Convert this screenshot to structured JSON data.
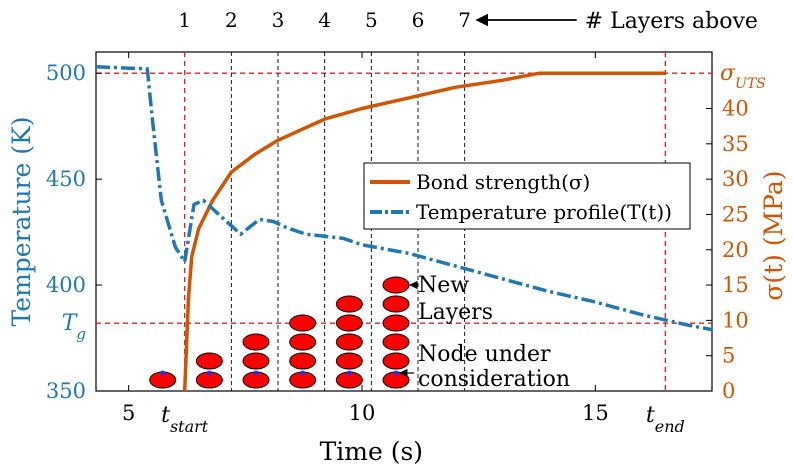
{
  "chart_data": {
    "type": "line",
    "title": "",
    "xlabel": "Time (s)",
    "ylabel_left": "Temperature (K)",
    "ylabel_right": "σ(t)  (MPa)",
    "xlim": [
      4.3,
      17.5
    ],
    "ylim_left": [
      350,
      510
    ],
    "ylim_right": [
      0,
      48
    ],
    "x_ticks": [
      5,
      10,
      15
    ],
    "x_tick_labels": [
      "5",
      "10",
      "15"
    ],
    "y_left_ticks": [
      350,
      400,
      450,
      500
    ],
    "y_right_ticks": [
      0,
      5,
      10,
      15,
      20,
      25,
      30,
      35,
      40
    ],
    "special_x_labels": {
      "t_start": "t",
      "t_start_sub": "start",
      "t_end": "t",
      "t_end_sub": "end"
    },
    "special_y_labels": {
      "T_g": "T",
      "T_g_sub": "g",
      "sigma_uts": "σ",
      "sigma_uts_sub": "UTS"
    },
    "reference_lines": {
      "t_start": 6.2,
      "t_end": 16.5,
      "T_g": 382,
      "sigma_uts_right": 45,
      "sigma_uts_left": 502
    },
    "layer_lines": [
      6.2,
      7.2,
      8.2,
      9.2,
      10.2,
      11.2,
      12.2
    ],
    "layer_labels": [
      "1",
      "2",
      "3",
      "4",
      "5",
      "6",
      "7"
    ],
    "layers_caption": "# Layers above",
    "legend": {
      "position": "center-right",
      "entries": [
        {
          "label": "Bond strength(σ)",
          "color": "#d35400",
          "style": "solid"
        },
        {
          "label": "Temperature profile(T(t))",
          "color": "#1f77b4",
          "style": "dashdot"
        }
      ]
    },
    "series": [
      {
        "name": "Temperature profile(T(t))",
        "axis": "left",
        "color": "#1f77b4",
        "x": [
          4.3,
          5.4,
          5.5,
          5.7,
          6.0,
          6.2,
          6.4,
          6.6,
          7.0,
          7.4,
          7.8,
          8.1,
          8.4,
          8.8,
          9.2,
          9.6,
          10.0,
          11.0,
          12.0,
          13.0,
          14.0,
          15.0,
          16.0,
          17.0,
          17.5
        ],
        "y": [
          503,
          502,
          480,
          440,
          418,
          411,
          438,
          440,
          432,
          424,
          431,
          430,
          427,
          424,
          423,
          422,
          419,
          415,
          409,
          403,
          397,
          392,
          386,
          381,
          379
        ]
      },
      {
        "name": "Bond strength(σ)",
        "axis": "right",
        "color": "#d35400",
        "x": [
          6.2,
          6.28,
          6.35,
          6.5,
          6.8,
          7.2,
          7.7,
          8.2,
          8.7,
          9.2,
          10.0,
          11.0,
          12.0,
          13.0,
          13.8,
          14.2,
          15.0,
          16.0,
          16.5
        ],
        "y": [
          0,
          13,
          19,
          23,
          27,
          31,
          33.5,
          35.5,
          37,
          38.5,
          40,
          41.5,
          43,
          44,
          45,
          45,
          45,
          45,
          45
        ]
      }
    ],
    "stacks": [
      {
        "x": 6.2,
        "count": 1
      },
      {
        "x": 7.2,
        "count": 2
      },
      {
        "x": 8.2,
        "count": 3
      },
      {
        "x": 9.2,
        "count": 4
      },
      {
        "x": 10.2,
        "count": 5
      },
      {
        "x": 11.2,
        "count": 6
      }
    ],
    "annotations": [
      {
        "text_lines": [
          "New",
          "Layers"
        ]
      },
      {
        "text_lines": [
          "Node under",
          "consideration"
        ]
      }
    ]
  }
}
